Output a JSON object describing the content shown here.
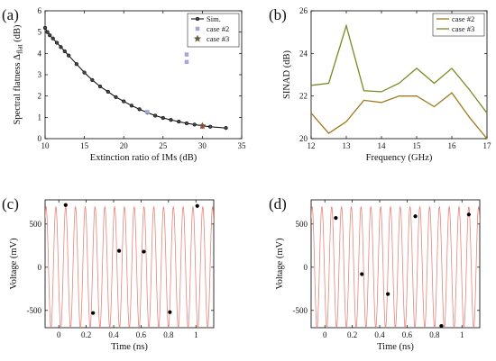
{
  "chart_data": [
    {
      "panel_label": "(a)",
      "type": "line",
      "xlabel": "Extinction ratio of IMs (dB)",
      "ylabel": "Spectral flatness Δ",
      "ylabel_sub": "flat",
      "ylabel_unit": " (dB)",
      "xlim": [
        10,
        35
      ],
      "ylim": [
        0,
        6
      ],
      "xticks": [
        10,
        15,
        20,
        25,
        30,
        35
      ],
      "yticks": [
        0,
        1,
        2,
        3,
        4,
        5,
        6
      ],
      "legend_position": "top-right",
      "series": [
        {
          "name": "Sim.",
          "color": "#000000",
          "marker": "circle",
          "x": [
            10,
            10.3,
            10.6,
            11,
            11.5,
            12,
            12.5,
            13,
            14,
            15,
            16,
            17,
            18,
            19,
            20,
            21,
            22,
            23,
            24,
            25,
            26,
            27,
            28,
            29,
            30,
            31,
            33
          ],
          "y": [
            5.2,
            5.0,
            4.85,
            4.7,
            4.5,
            4.3,
            4.1,
            3.9,
            3.5,
            3.1,
            2.75,
            2.45,
            2.2,
            1.95,
            1.75,
            1.55,
            1.38,
            1.22,
            1.08,
            0.97,
            0.88,
            0.8,
            0.72,
            0.66,
            0.6,
            0.56,
            0.5
          ]
        },
        {
          "name": "case #2",
          "color": "#b39ddb",
          "marker": "square",
          "x": [
            23,
            28,
            28
          ],
          "y": [
            1.25,
            3.6,
            3.95
          ]
        },
        {
          "name": "case #3",
          "color": "#6b5a3b",
          "marker": "star",
          "x": [
            30
          ],
          "y": [
            0.6
          ]
        }
      ]
    },
    {
      "panel_label": "(b)",
      "type": "line",
      "xlabel": "Frequency (GHz)",
      "ylabel": "SINAD (dB)",
      "xlim": [
        12,
        17
      ],
      "ylim": [
        20,
        26
      ],
      "xticks": [
        12,
        13,
        14,
        15,
        16,
        17
      ],
      "yticks": [
        20,
        22,
        24,
        26
      ],
      "legend_position": "top-right",
      "series": [
        {
          "name": "case #2",
          "color": "#a07a1e",
          "x": [
            12,
            12.5,
            13,
            13.5,
            14,
            14.5,
            15,
            15.5,
            16,
            16.5,
            17
          ],
          "y": [
            21.2,
            20.25,
            20.8,
            21.8,
            21.7,
            22.0,
            22.0,
            21.5,
            22.15,
            21.0,
            20.0
          ]
        },
        {
          "name": "case #3",
          "color": "#7a8a22",
          "x": [
            12,
            12.5,
            13,
            13.5,
            14,
            14.5,
            15,
            15.5,
            16,
            16.5,
            17
          ],
          "y": [
            22.5,
            22.6,
            25.3,
            22.25,
            22.2,
            22.6,
            23.3,
            22.6,
            23.3,
            22.3,
            21.2
          ]
        }
      ]
    },
    {
      "panel_label": "(c)",
      "type": "line",
      "xlabel": "Time (ns)",
      "ylabel": "Voltage (mV)",
      "xlim": [
        -0.1,
        1.13
      ],
      "ylim": [
        -700,
        780
      ],
      "xticks": [
        0,
        0.2,
        0.4,
        0.6,
        0.8,
        1
      ],
      "yticks": [
        -500,
        0,
        500
      ],
      "sine": {
        "frequency_ghz": 14,
        "amplitude_mv": 700,
        "color": "#e8857a"
      },
      "samples": {
        "t": [
          0.05,
          0.25,
          0.44,
          0.62,
          0.81,
          1.01
        ],
        "v": [
          720,
          -530,
          190,
          180,
          -520,
          710
        ]
      }
    },
    {
      "panel_label": "(d)",
      "type": "line",
      "xlabel": "Time (ns)",
      "ylabel": "Voltage (mV)",
      "xlim": [
        -0.1,
        1.13
      ],
      "ylim": [
        -700,
        780
      ],
      "xticks": [
        0,
        0.2,
        0.4,
        0.6,
        0.8,
        1
      ],
      "yticks": [
        -500,
        0,
        500
      ],
      "sine": {
        "frequency_ghz": 14,
        "amplitude_mv": 700,
        "color": "#e8857a"
      },
      "samples": {
        "t": [
          0.08,
          0.27,
          0.46,
          0.66,
          0.85,
          1.05
        ],
        "v": [
          570,
          -80,
          -310,
          590,
          -680,
          610
        ]
      }
    }
  ]
}
